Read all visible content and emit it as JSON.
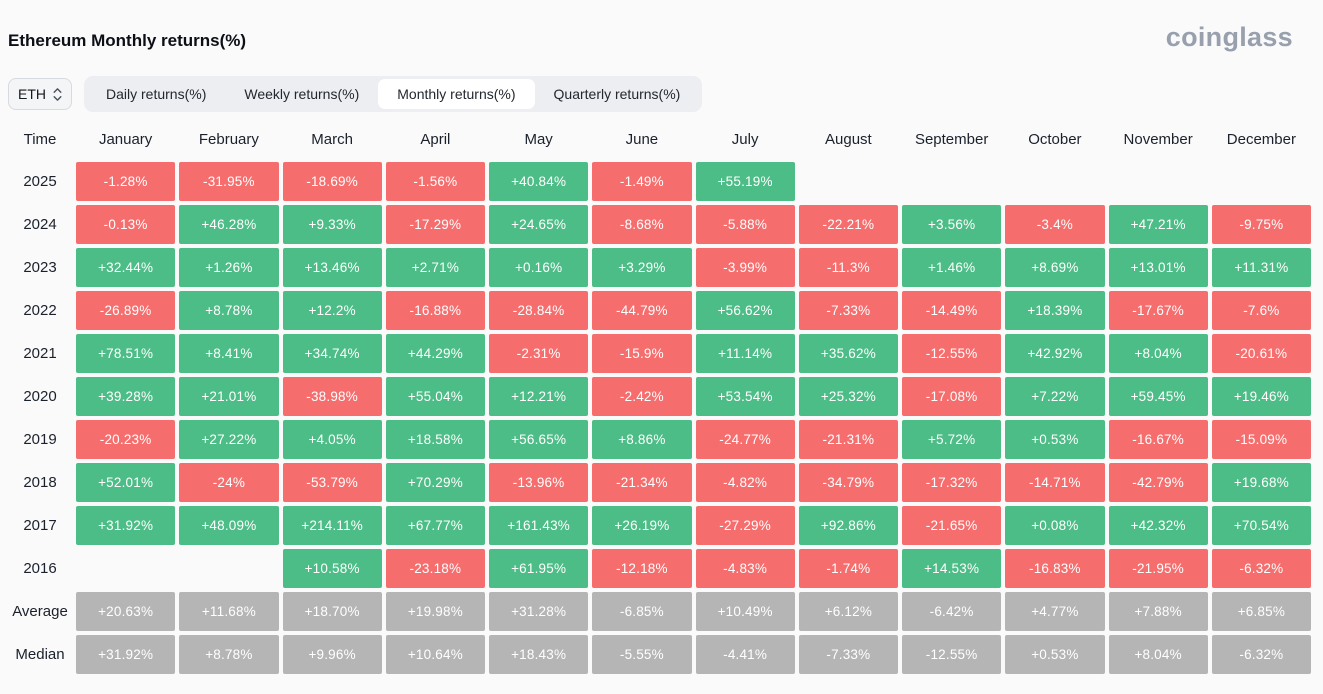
{
  "page": {
    "title": "Ethereum Monthly returns(%)",
    "brand": "coinglass"
  },
  "controls": {
    "symbol_select": {
      "value": "ETH"
    },
    "tabs": [
      {
        "label": "Daily returns(%)",
        "active": false
      },
      {
        "label": "Weekly returns(%)",
        "active": false
      },
      {
        "label": "Monthly returns(%)",
        "active": true
      },
      {
        "label": "Quarterly returns(%)",
        "active": false
      }
    ]
  },
  "chart_data": {
    "type": "heatmap",
    "title": "Ethereum Monthly returns(%)",
    "row_header": "Time",
    "columns": [
      "January",
      "February",
      "March",
      "April",
      "May",
      "June",
      "July",
      "August",
      "September",
      "October",
      "November",
      "December"
    ],
    "colors": {
      "positive": "#4dbd87",
      "negative": "#f66d6d",
      "neutral": "#b5b5b5"
    },
    "rows": [
      {
        "label": "2025",
        "values": [
          "-1.28%",
          "-31.95%",
          "-18.69%",
          "-1.56%",
          "+40.84%",
          "-1.49%",
          "+55.19%",
          null,
          null,
          null,
          null,
          null
        ]
      },
      {
        "label": "2024",
        "values": [
          "-0.13%",
          "+46.28%",
          "+9.33%",
          "-17.29%",
          "+24.65%",
          "-8.68%",
          "-5.88%",
          "-22.21%",
          "+3.56%",
          "-3.4%",
          "+47.21%",
          "-9.75%"
        ]
      },
      {
        "label": "2023",
        "values": [
          "+32.44%",
          "+1.26%",
          "+13.46%",
          "+2.71%",
          "+0.16%",
          "+3.29%",
          "-3.99%",
          "-11.3%",
          "+1.46%",
          "+8.69%",
          "+13.01%",
          "+11.31%"
        ]
      },
      {
        "label": "2022",
        "values": [
          "-26.89%",
          "+8.78%",
          "+12.2%",
          "-16.88%",
          "-28.84%",
          "-44.79%",
          "+56.62%",
          "-7.33%",
          "-14.49%",
          "+18.39%",
          "-17.67%",
          "-7.6%"
        ]
      },
      {
        "label": "2021",
        "values": [
          "+78.51%",
          "+8.41%",
          "+34.74%",
          "+44.29%",
          "-2.31%",
          "-15.9%",
          "+11.14%",
          "+35.62%",
          "-12.55%",
          "+42.92%",
          "+8.04%",
          "-20.61%"
        ]
      },
      {
        "label": "2020",
        "values": [
          "+39.28%",
          "+21.01%",
          "-38.98%",
          "+55.04%",
          "+12.21%",
          "-2.42%",
          "+53.54%",
          "+25.32%",
          "-17.08%",
          "+7.22%",
          "+59.45%",
          "+19.46%"
        ]
      },
      {
        "label": "2019",
        "values": [
          "-20.23%",
          "+27.22%",
          "+4.05%",
          "+18.58%",
          "+56.65%",
          "+8.86%",
          "-24.77%",
          "-21.31%",
          "+5.72%",
          "+0.53%",
          "-16.67%",
          "-15.09%"
        ]
      },
      {
        "label": "2018",
        "values": [
          "+52.01%",
          "-24%",
          "-53.79%",
          "+70.29%",
          "-13.96%",
          "-21.34%",
          "-4.82%",
          "-34.79%",
          "-17.32%",
          "-14.71%",
          "-42.79%",
          "+19.68%"
        ]
      },
      {
        "label": "2017",
        "values": [
          "+31.92%",
          "+48.09%",
          "+214.11%",
          "+67.77%",
          "+161.43%",
          "+26.19%",
          "-27.29%",
          "+92.86%",
          "-21.65%",
          "+0.08%",
          "+42.32%",
          "+70.54%"
        ]
      },
      {
        "label": "2016",
        "values": [
          null,
          null,
          "+10.58%",
          "-23.18%",
          "+61.95%",
          "-12.18%",
          "-4.83%",
          "-1.74%",
          "+14.53%",
          "-16.83%",
          "-21.95%",
          "-6.32%"
        ]
      },
      {
        "label": "Average",
        "neutral": true,
        "values": [
          "+20.63%",
          "+11.68%",
          "+18.70%",
          "+19.98%",
          "+31.28%",
          "-6.85%",
          "+10.49%",
          "+6.12%",
          "-6.42%",
          "+4.77%",
          "+7.88%",
          "+6.85%"
        ]
      },
      {
        "label": "Median",
        "neutral": true,
        "values": [
          "+31.92%",
          "+8.78%",
          "+9.96%",
          "+10.64%",
          "+18.43%",
          "-5.55%",
          "-4.41%",
          "-7.33%",
          "-12.55%",
          "+0.53%",
          "+8.04%",
          "-6.32%"
        ]
      }
    ]
  }
}
